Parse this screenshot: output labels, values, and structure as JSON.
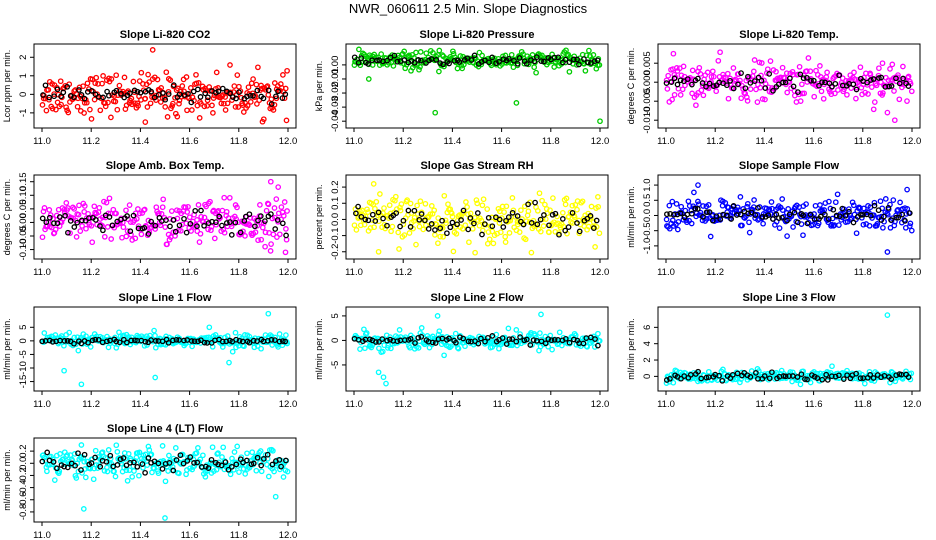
{
  "figure_title": "NWR_060611  2.5 Min. Slope Diagnostics",
  "chart_data": [
    {
      "type": "scatter",
      "title": "Slope Li-820 CO2",
      "ylabel": "Lcor ppm per min.",
      "color": "#ff0000",
      "xlim": [
        11.0,
        12.0
      ],
      "xticks": [
        "11.0",
        "11.2",
        "11.4",
        "11.6",
        "11.8",
        "12.0"
      ],
      "ylim": [
        -1.6,
        2.5
      ],
      "yticks": [
        -1,
        0,
        1,
        2
      ],
      "ytick_labels": [
        "-1",
        "0",
        "1",
        "2"
      ],
      "center": 0,
      "spread": 0.55,
      "black_spread": 0.18,
      "outliers": [
        [
          11.45,
          2.4
        ],
        [
          11.42,
          -1.5
        ],
        [
          11.55,
          -1.2
        ]
      ]
    },
    {
      "type": "scatter",
      "title": "Slope Li-820 Pressure",
      "ylabel": "kPa per min.",
      "color": "#00cc00",
      "xlim": [
        11.0,
        12.0
      ],
      "xticks": [
        "11.0",
        "11.2",
        "11.4",
        "11.6",
        "11.8",
        "12.0"
      ],
      "ylim": [
        -0.042,
        0.012
      ],
      "yticks": [
        -0.04,
        -0.03,
        -0.02,
        -0.01,
        0.0
      ],
      "ytick_labels": [
        "-0.04",
        "-0.03",
        "-0.02",
        "-0.01",
        "0.00"
      ],
      "center": 0.003,
      "spread": 0.003,
      "black_spread": 0.0015,
      "outliers": [
        [
          11.02,
          0.011
        ],
        [
          11.33,
          -0.034
        ],
        [
          11.66,
          -0.027
        ],
        [
          12.0,
          -0.04
        ],
        [
          11.06,
          -0.01
        ]
      ]
    },
    {
      "type": "scatter",
      "title": "Slope Li-820 Temp.",
      "ylabel": "degrees C per min.",
      "color": "#ff00ff",
      "xlim": [
        11.0,
        12.0
      ],
      "xticks": [
        "11.0",
        "11.2",
        "11.4",
        "11.6",
        "11.8",
        "12.0"
      ],
      "ylim": [
        -0.011,
        0.009
      ],
      "yticks": [
        -0.01,
        -0.005,
        0.0,
        0.005
      ],
      "ytick_labels": [
        "-0.010",
        "-0.005",
        "0.000",
        "0.005"
      ],
      "center": 0.0,
      "spread": 0.0025,
      "black_spread": 0.001,
      "outliers": [
        [
          11.03,
          0.0075
        ],
        [
          11.93,
          -0.01
        ],
        [
          11.88,
          0.005
        ],
        [
          11.9,
          -0.008
        ]
      ]
    },
    {
      "type": "scatter",
      "title": "Slope Amb. Box Temp.",
      "ylabel": "degrees C per min.",
      "color": "#ff00ff",
      "xlim": [
        11.0,
        12.0
      ],
      "xticks": [
        "11.0",
        "11.2",
        "11.4",
        "11.6",
        "11.8",
        "12.0"
      ],
      "ylim": [
        -0.12,
        0.16
      ],
      "yticks": [
        -0.1,
        -0.05,
        0.0,
        0.05,
        0.1,
        0.15
      ],
      "ytick_labels": [
        "-0.10",
        "-0.05",
        "0.00",
        "0.05",
        "0.10",
        "0.15"
      ],
      "center": 0.0,
      "spread": 0.04,
      "black_spread": 0.02,
      "outliers": [
        [
          11.93,
          0.15
        ],
        [
          11.99,
          -0.11
        ],
        [
          11.96,
          0.13
        ]
      ]
    },
    {
      "type": "scatter",
      "title": "Slope Gas Stream RH",
      "ylabel": "percent per min.",
      "color": "#ffff00",
      "xlim": [
        11.0,
        12.0
      ],
      "xticks": [
        "11.0",
        "11.2",
        "11.4",
        "11.6",
        "11.8",
        "12.0"
      ],
      "ylim": [
        -0.22,
        0.25
      ],
      "yticks": [
        -0.2,
        -0.1,
        0.0,
        0.1,
        0.2
      ],
      "ytick_labels": [
        "-0.2",
        "-0.1",
        "0.0",
        "0.1",
        "0.2"
      ],
      "center": 0.0,
      "spread": 0.07,
      "black_spread": 0.04,
      "outliers": [
        [
          11.08,
          0.22
        ],
        [
          11.1,
          -0.2
        ],
        [
          11.98,
          -0.17
        ]
      ]
    },
    {
      "type": "scatter",
      "title": "Slope Sample Flow",
      "ylabel": "ml/min per min.",
      "color": "#0000ff",
      "xlim": [
        11.0,
        12.0
      ],
      "xticks": [
        "11.0",
        "11.2",
        "11.4",
        "11.6",
        "11.8",
        "12.0"
      ],
      "ylim": [
        -1.3,
        1.2
      ],
      "yticks": [
        -1.0,
        -0.5,
        0.0,
        0.5,
        1.0
      ],
      "ytick_labels": [
        "-1.0",
        "-0.5",
        "0.0",
        "0.5",
        "1.0"
      ],
      "center": 0.0,
      "spread": 0.28,
      "black_spread": 0.15,
      "outliers": [
        [
          11.13,
          1.0
        ],
        [
          11.9,
          -1.2
        ],
        [
          11.98,
          0.85
        ]
      ]
    },
    {
      "type": "scatter",
      "title": "Slope Line 1 Flow",
      "ylabel": "ml/min per min.",
      "color": "#00ffff",
      "xlim": [
        11.0,
        12.0
      ],
      "xticks": [
        "11.0",
        "11.2",
        "11.4",
        "11.6",
        "11.8",
        "12.0"
      ],
      "ylim": [
        -17,
        11
      ],
      "yticks": [
        -15,
        -10,
        -5,
        0,
        5
      ],
      "ytick_labels": [
        "-15",
        "-10",
        "-5",
        "0",
        "5"
      ],
      "center": 0.0,
      "spread": 1.2,
      "black_spread": 0.4,
      "outliers": [
        [
          11.16,
          -16
        ],
        [
          11.09,
          -11
        ],
        [
          11.46,
          -13.5
        ],
        [
          11.92,
          10
        ],
        [
          11.76,
          -8
        ],
        [
          11.68,
          5
        ]
      ]
    },
    {
      "type": "scatter",
      "title": "Slope Line 2 Flow",
      "ylabel": "ml/min per min.",
      "color": "#00ffff",
      "xlim": [
        11.0,
        12.0
      ],
      "xticks": [
        "11.0",
        "11.2",
        "11.4",
        "11.6",
        "11.8",
        "12.0"
      ],
      "ylim": [
        -9.5,
        6
      ],
      "yticks": [
        -5,
        0,
        5
      ],
      "ytick_labels": [
        "-5",
        "0",
        "5"
      ],
      "center": 0.0,
      "spread": 0.9,
      "black_spread": 0.35,
      "outliers": [
        [
          11.12,
          -7.5
        ],
        [
          11.13,
          -8.8
        ],
        [
          11.1,
          -6.5
        ],
        [
          11.76,
          5.3
        ],
        [
          11.34,
          5
        ]
      ]
    },
    {
      "type": "scatter",
      "title": "Slope Line 3 Flow",
      "ylabel": "ml/min per min.",
      "color": "#00ffff",
      "xlim": [
        11.0,
        12.0
      ],
      "xticks": [
        "11.0",
        "11.2",
        "11.4",
        "11.6",
        "11.8",
        "12.0"
      ],
      "ylim": [
        -1.3,
        8
      ],
      "yticks": [
        0,
        2,
        4,
        6
      ],
      "ytick_labels": [
        "0",
        "2",
        "4",
        "6"
      ],
      "center": 0.0,
      "spread": 0.35,
      "black_spread": 0.25,
      "outliers": [
        [
          11.9,
          7.5
        ]
      ]
    },
    {
      "type": "scatter",
      "title": "Slope Line 4 (LT) Flow",
      "ylabel": "ml/min per min.",
      "color": "#00ffff",
      "xlim": [
        11.0,
        12.0
      ],
      "xticks": [
        "11.0",
        "11.2",
        "11.4",
        "11.6",
        "11.8",
        "12.0"
      ],
      "ylim": [
        -0.9,
        0.35
      ],
      "yticks": [
        -0.8,
        -0.6,
        -0.4,
        -0.2,
        0.0,
        0.2
      ],
      "ytick_labels": [
        "-0.8",
        "-0.6",
        "-0.4",
        "-0.2",
        "0.0",
        "0.2"
      ],
      "center": 0.0,
      "spread": 0.12,
      "black_spread": 0.08,
      "outliers": [
        [
          11.17,
          -0.75
        ],
        [
          11.5,
          -0.9
        ],
        [
          11.16,
          0.3
        ],
        [
          11.95,
          -0.55
        ]
      ]
    }
  ]
}
